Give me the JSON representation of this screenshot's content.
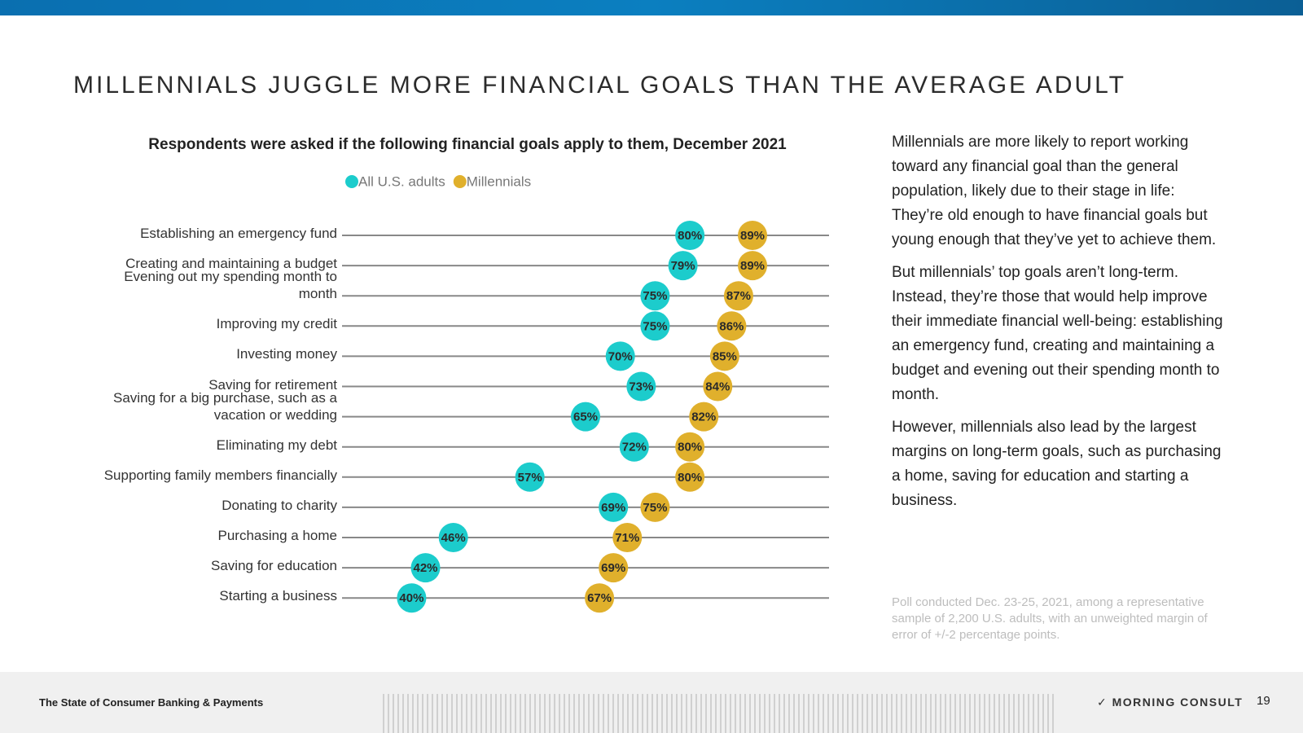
{
  "header": {
    "title": "MILLENNIALS JUGGLE MORE FINANCIAL GOALS THAN THE AVERAGE ADULT"
  },
  "chart_data": {
    "type": "dot",
    "title": "Respondents were asked if the following financial goals apply to them, December 2021",
    "categories": [
      "Establishing an emergency fund",
      "Creating and maintaining a budget",
      "Evening out my spending month to month",
      "Improving my credit",
      "Investing money",
      "Saving for retirement",
      "Saving for a big purchase, such as a vacation or wedding",
      "Eliminating my debt",
      "Supporting family members financially",
      "Donating to charity",
      "Purchasing a home",
      "Saving for education",
      "Starting a business"
    ],
    "series": [
      {
        "name": "All U.S. adults",
        "color": "#1ccccc",
        "values": [
          80,
          79,
          75,
          75,
          70,
          73,
          65,
          72,
          57,
          69,
          46,
          42,
          40
        ],
        "value_labels": [
          "80%",
          "79%",
          "75%",
          "75%",
          "70%",
          "73%",
          "65%",
          "72%",
          "57%",
          "69%",
          "46%",
          "42%",
          "40%"
        ]
      },
      {
        "name": "Millennials",
        "color": "#e0b02c",
        "values": [
          89,
          89,
          87,
          86,
          85,
          84,
          82,
          80,
          80,
          75,
          71,
          69,
          67
        ],
        "value_labels": [
          "89%",
          "89%",
          "87%",
          "86%",
          "85%",
          "84%",
          "82%",
          "80%",
          "80%",
          "75%",
          "71%",
          "69%",
          "67%"
        ]
      }
    ],
    "xlim": [
      30,
      100
    ]
  },
  "side": {
    "paragraphs": [
      "Millennials are more likely to report working toward any financial goal than the general population, likely due to their stage in life: They’re old enough to have financial goals but young enough that they’ve yet to achieve them.",
      "But millennials’ top goals aren’t long-term. Instead, they’re those that would help improve their immediate financial well-being: establishing an emergency fund, creating and maintaining a budget and evening out their spending month to month.",
      "However, millennials also lead by the largest margins on long-term goals, such as purchasing a home, saving for education and starting a business."
    ],
    "note": "Poll conducted Dec. 23-25, 2021, among a representative sample of 2,200 U.S. adults, with an unweighted margin of error of +/-2 percentage points."
  },
  "footer": {
    "report": "The State of Consumer Banking & Payments",
    "brand": "MORNING CONSULT",
    "page": "19"
  }
}
